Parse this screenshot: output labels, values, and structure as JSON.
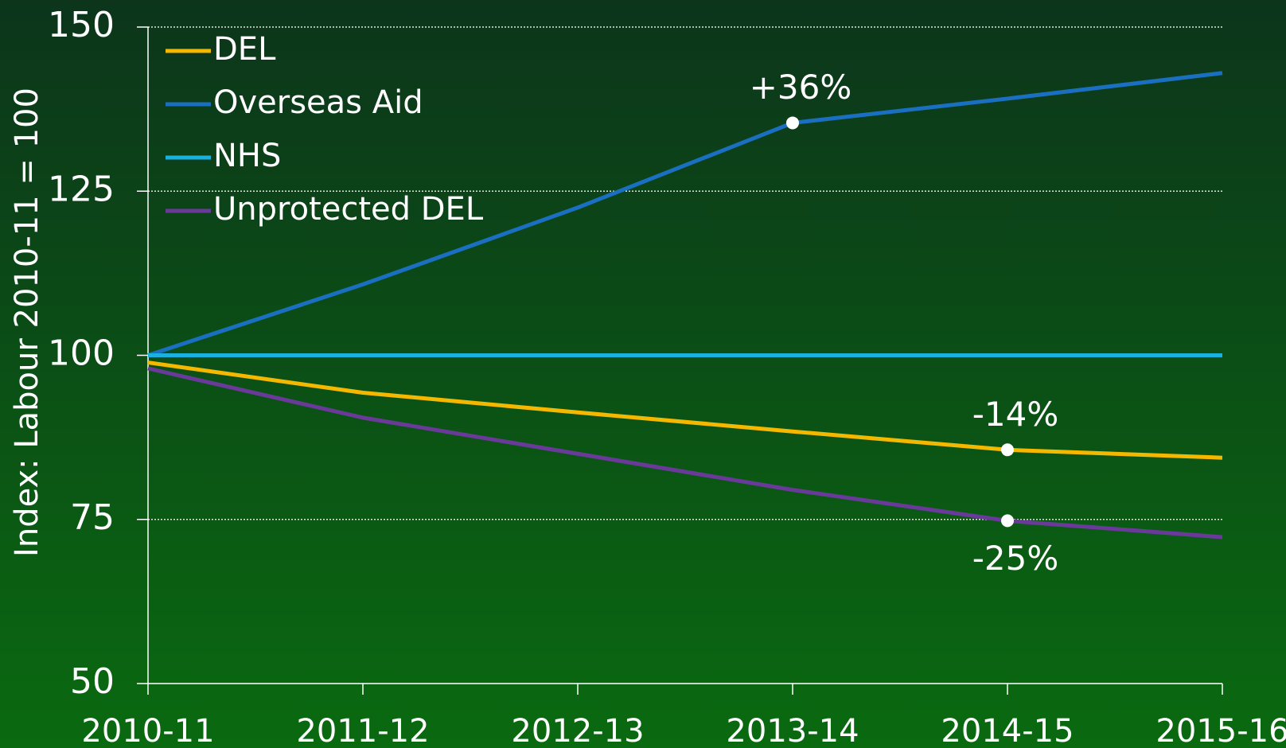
{
  "chart_data": {
    "type": "line",
    "y_label": "Index: Labour 2010-11 = 100",
    "categories": [
      "2010-11",
      "2011-12",
      "2012-13",
      "2013-14",
      "2014-15",
      "2015-16"
    ],
    "series": [
      {
        "name": "DEL",
        "color": "#f5b800",
        "values": [
          98.9,
          94.3,
          91.3,
          88.4,
          85.6,
          84.4
        ]
      },
      {
        "name": "Overseas Aid",
        "color": "#1a6fc0",
        "values": [
          100,
          110.8,
          122.5,
          135.4,
          139.1,
          143
        ]
      },
      {
        "name": "NHS",
        "color": "#1ab0e0",
        "values": [
          100,
          100,
          100,
          100,
          100,
          100
        ]
      },
      {
        "name": "Unprotected DEL",
        "color": "#6a3a9a",
        "values": [
          98,
          90.5,
          85,
          79.5,
          74.8,
          72.3
        ]
      }
    ],
    "annotations": [
      {
        "text": "+36%",
        "series": 1,
        "point": 3,
        "position": "above"
      },
      {
        "text": "-14%",
        "series": 0,
        "point": 4,
        "position": "above"
      },
      {
        "text": "-25%",
        "series": 3,
        "point": 4,
        "position": "below"
      }
    ],
    "ylim": [
      50,
      150
    ],
    "yticks": [
      50,
      75,
      100,
      125,
      150
    ],
    "grid": true,
    "legend": "top-left"
  }
}
